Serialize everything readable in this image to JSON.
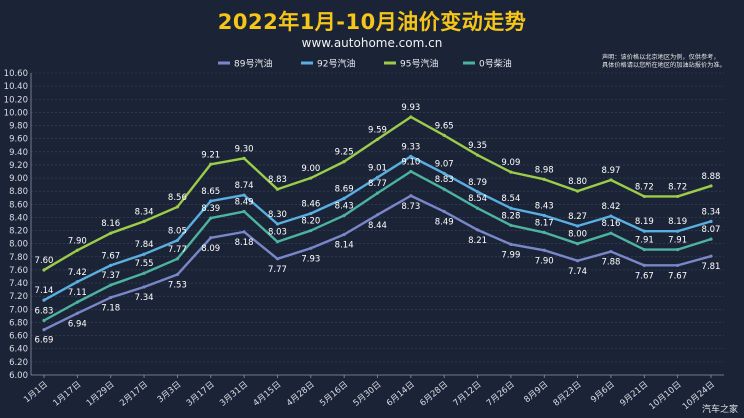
{
  "header": {
    "title": "2022年1月-10月油价变动走势",
    "subtitle": "www.autohome.com.cn"
  },
  "disclaimer": [
    "声明：该价格以北京地区为例，仅供参考，",
    "具体价格请以您所在地区的加油站报价为准。"
  ],
  "watermark": "汽车之家",
  "chart_data": {
    "type": "line",
    "x": [
      "1月1日",
      "1月17日",
      "1月29日",
      "2月17日",
      "3月3日",
      "3月17日",
      "3月31日",
      "4月15日",
      "4月28日",
      "5月16日",
      "5月30日",
      "6月14日",
      "6月28日",
      "7月12日",
      "7月26日",
      "8月9日",
      "8月23日",
      "9月6日",
      "9月21日",
      "10月10日",
      "10月24日"
    ],
    "ylim": [
      6.0,
      10.6
    ],
    "yticks": [
      "6.00",
      "6.20",
      "6.40",
      "6.60",
      "6.80",
      "7.00",
      "7.20",
      "7.40",
      "7.60",
      "7.80",
      "8.00",
      "8.20",
      "8.40",
      "8.60",
      "8.80",
      "9.00",
      "9.20",
      "9.40",
      "9.60",
      "9.80",
      "10.00",
      "10.20",
      "10.40",
      "10.60"
    ],
    "grid": true,
    "legend_position": "top",
    "series": [
      {
        "name": "89号汽油",
        "color": "#7b86c9",
        "values": [
          6.69,
          6.94,
          7.18,
          7.34,
          7.53,
          8.09,
          8.18,
          7.77,
          7.93,
          8.14,
          8.44,
          8.73,
          8.49,
          8.21,
          7.99,
          7.9,
          7.74,
          7.88,
          7.67,
          7.67,
          7.81
        ],
        "labels": [
          "6.69",
          "6.94",
          "7.18",
          "7.34",
          "7.53",
          "8.09",
          "8.18",
          "7.77",
          "7.93",
          "8.14",
          "8.44",
          "8.73",
          "8.49",
          "8.21",
          "7.99",
          "7.90",
          "7.74",
          "7.88",
          "7.67",
          "7.67",
          "7.81"
        ]
      },
      {
        "name": "92号汽油",
        "color": "#5aaee0",
        "values": [
          7.14,
          7.42,
          7.67,
          7.84,
          8.05,
          8.65,
          8.74,
          8.3,
          8.46,
          8.69,
          9.01,
          9.33,
          9.07,
          8.79,
          8.54,
          8.43,
          8.27,
          8.42,
          8.19,
          8.19,
          8.34
        ],
        "labels": [
          "7.14",
          "7.42",
          "7.67",
          "7.84",
          "8.05",
          "8.65",
          "8.74",
          "8.30",
          "8.46",
          "8.69",
          "9.01",
          "9.33",
          "9.07",
          "8.79",
          "8.54",
          "8.43",
          "8.27",
          "8.42",
          "8.19",
          "8.19",
          "8.34"
        ]
      },
      {
        "name": "95号汽油",
        "color": "#9ccc4a",
        "values": [
          7.6,
          7.9,
          8.16,
          8.34,
          8.56,
          9.21,
          9.3,
          8.83,
          9.0,
          9.25,
          9.59,
          9.93,
          9.65,
          9.35,
          9.09,
          8.98,
          8.8,
          8.97,
          8.72,
          8.72,
          8.88
        ],
        "labels": [
          "7.60",
          "7.90",
          "8.16",
          "8.34",
          "8.56",
          "9.21",
          "9.30",
          "8.83",
          "9.00",
          "9.25",
          "9.59",
          "9.93",
          "9.65",
          "9.35",
          "9.09",
          "8.98",
          "8.80",
          "8.97",
          "8.72",
          "8.72",
          "8.88"
        ]
      },
      {
        "name": "0号柴油",
        "color": "#4db3a0",
        "values": [
          6.83,
          7.11,
          7.37,
          7.55,
          7.77,
          8.39,
          8.49,
          8.03,
          8.2,
          8.43,
          8.77,
          9.1,
          8.83,
          8.54,
          8.28,
          8.17,
          8.0,
          8.16,
          7.91,
          7.91,
          8.07
        ],
        "labels": [
          "6.83",
          "7.11",
          "7.37",
          "7.55",
          "7.77",
          "8.39",
          "8.49",
          "8.03",
          "8.20",
          "8.43",
          "8.77",
          "9.10",
          "8.83",
          "8.54",
          "8.28",
          "8.17",
          "8.00",
          "8.16",
          "7.91",
          "7.91",
          "8.07"
        ]
      }
    ]
  }
}
